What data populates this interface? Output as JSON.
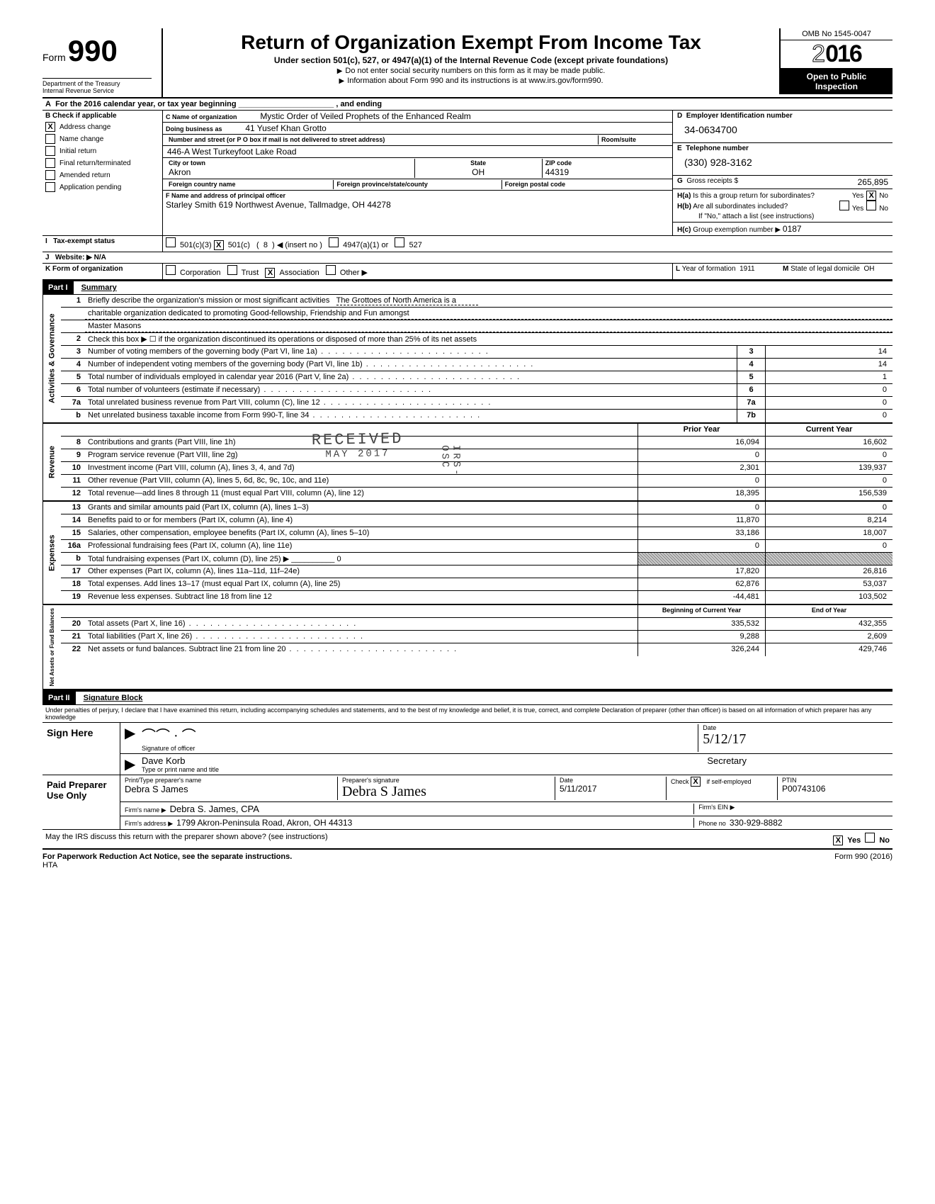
{
  "header": {
    "form_label": "Form",
    "form_number": "990",
    "dept1": "Department of the Treasury",
    "dept2": "Internal Revenue Service",
    "title": "Return of Organization Exempt From Income Tax",
    "subtitle": "Under section 501(c), 527, or 4947(a)(1) of the Internal Revenue Code (except private foundations)",
    "line1": "Do not enter social security numbers on this form as it may be made public.",
    "line2": "Information about Form 990 and its instructions is at www.irs.gov/form990.",
    "omb": "OMB No 1545-0047",
    "year_prefix": "2",
    "year_bold": "016",
    "open1": "Open to Public",
    "open2": "Inspection"
  },
  "rowA": "For the 2016 calendar year, or tax year beginning ______________________ , and ending",
  "colB": {
    "header": "Check if applicable",
    "letter": "B",
    "items": [
      {
        "label": "Address change",
        "checked": true
      },
      {
        "label": "Name change",
        "checked": false
      },
      {
        "label": "Initial return",
        "checked": false
      },
      {
        "label": "Final return/terminated",
        "checked": false
      },
      {
        "label": "Amended return",
        "checked": false
      },
      {
        "label": "Application pending",
        "checked": false
      }
    ]
  },
  "colC": {
    "letter": "C",
    "name_lbl": "Name of organization",
    "name": "Mystic Order of Veiled Prophets of the Enhanced Realm",
    "dba_lbl": "Doing business as",
    "dba": "41 Yusef Khan Grotto",
    "street_lbl": "Number and street (or P O box if mail is not delivered to street address)",
    "room_lbl": "Room/suite",
    "street": "446-A West Turkeyfoot Lake Road",
    "city_lbl": "City or town",
    "state_lbl": "State",
    "zip_lbl": "ZIP code",
    "city": "Akron",
    "state": "OH",
    "zip": "44319",
    "foreign_country_lbl": "Foreign country name",
    "foreign_prov_lbl": "Foreign province/state/county",
    "foreign_postal_lbl": "Foreign postal code",
    "officer_lbl": "Name and address of principal officer",
    "officer_letter": "F",
    "officer": "Starley Smith 619 Northwest Avenue, Tallmadge, OH  44278"
  },
  "colD": {
    "ein_lbl": "Employer Identification number",
    "ein_letter": "D",
    "ein": "34-0634700",
    "tel_lbl": "Telephone number",
    "tel_letter": "E",
    "tel": "(330) 928-3162",
    "gross_lbl": "Gross receipts $",
    "gross_letter": "G",
    "gross": "265,895",
    "ha": "Is this a group return for subordinates?",
    "ha_letter": "H(a)",
    "hb": "Are all subordinates included?",
    "hb_letter": "H(b)",
    "hb_note": "If \"No,\" attach a list (see instructions)",
    "hc": "Group exemption number ▶",
    "hc_letter": "H(c)",
    "hc_val": "0187",
    "yes": "Yes",
    "no": "No"
  },
  "rowI": {
    "letter": "I",
    "label": "Tax-exempt status",
    "opt1": "501(c)(3)",
    "opt2": "501(c)",
    "opt2_paren": "(",
    "opt2_val": "8",
    "opt2_close": ") ◀ (insert no )",
    "opt3": "4947(a)(1) or",
    "opt4": "527"
  },
  "rowJ": {
    "letter": "J",
    "label": "Website: ▶",
    "val": "N/A"
  },
  "rowK": {
    "letter": "K",
    "label": "Form of organization",
    "opts": [
      "Corporation",
      "Trust",
      "Association",
      "Other ▶"
    ],
    "checked_idx": 2,
    "year_lbl": "Year of formation",
    "year_letter": "L",
    "year": "1911",
    "state_lbl": "State of legal domicile",
    "state_letter": "M",
    "state": "OH"
  },
  "part1": {
    "num": "Part I",
    "title": "Summary"
  },
  "governance": {
    "side": "Activities & Governance",
    "r1_num": "1",
    "r1": "Briefly describe the organization's mission or most significant activities",
    "r1_val": "The Grottoes of North America is a",
    "r1_cont": "charitable organization dedicated to promoting Good-fellowship, Friendship and Fun amongst",
    "r1_cont2": "Master Masons",
    "r2_num": "2",
    "r2": "Check this box ▶ ☐ if the organization discontinued its operations or disposed of more than 25% of its net assets",
    "rows": [
      {
        "n": "3",
        "d": "Number of voting members of the governing body (Part VI, line 1a)",
        "b": "3",
        "v": "14"
      },
      {
        "n": "4",
        "d": "Number of independent voting members of the governing body (Part VI, line 1b)",
        "b": "4",
        "v": "14"
      },
      {
        "n": "5",
        "d": "Total number of individuals employed in calendar year 2016 (Part V, line 2a)",
        "b": "5",
        "v": "1"
      },
      {
        "n": "6",
        "d": "Total number of volunteers (estimate if necessary)",
        "b": "6",
        "v": "0"
      },
      {
        "n": "7a",
        "d": "Total unrelated business revenue from Part VIII, column (C), line 12",
        "b": "7a",
        "v": "0"
      },
      {
        "n": "b",
        "d": "Net unrelated business taxable income from Form 990-T, line 34",
        "b": "7b",
        "v": "0"
      }
    ]
  },
  "columns_hdr": {
    "prior": "Prior Year",
    "current": "Current Year"
  },
  "revenue": {
    "side": "Revenue",
    "rows": [
      {
        "n": "8",
        "d": "Contributions and grants (Part VIII, line 1h)",
        "p": "16,094",
        "c": "16,602"
      },
      {
        "n": "9",
        "d": "Program service revenue (Part VIII, line 2g)",
        "p": "0",
        "c": "0"
      },
      {
        "n": "10",
        "d": "Investment income (Part VIII, column (A), lines 3, 4, and 7d)",
        "p": "2,301",
        "c": "139,937"
      },
      {
        "n": "11",
        "d": "Other revenue (Part VIII, column (A), lines 5, 6d, 8c, 9c, 10c, and 11e)",
        "p": "0",
        "c": "0"
      },
      {
        "n": "12",
        "d": "Total revenue—add lines 8 through 11 (must equal Part VIII, column (A), line 12)",
        "p": "18,395",
        "c": "156,539"
      }
    ]
  },
  "expenses": {
    "side": "Expenses",
    "rows": [
      {
        "n": "13",
        "d": "Grants and similar amounts paid (Part IX, column (A), lines 1–3)",
        "p": "0",
        "c": "0"
      },
      {
        "n": "14",
        "d": "Benefits paid to or for members (Part IX, column (A), line 4)",
        "p": "11,870",
        "c": "8,214"
      },
      {
        "n": "15",
        "d": "Salaries, other compensation, employee benefits (Part IX, column (A), lines 5–10)",
        "p": "33,186",
        "c": "18,007"
      },
      {
        "n": "16a",
        "d": "Professional fundraising fees (Part IX, column (A), line 11e)",
        "p": "0",
        "c": "0"
      },
      {
        "n": "b",
        "d": "Total fundraising expenses (Part IX, column (D), line 25)  ▶ __________ 0",
        "p": "",
        "c": "",
        "shaded": true
      },
      {
        "n": "17",
        "d": "Other expenses (Part IX, column (A), lines 11a–11d, 11f–24e)",
        "p": "17,820",
        "c": "26,816"
      },
      {
        "n": "18",
        "d": "Total expenses. Add lines 13–17 (must equal Part IX, column (A), line 25)",
        "p": "62,876",
        "c": "53,037"
      },
      {
        "n": "19",
        "d": "Revenue less expenses. Subtract line 18 from line 12",
        "p": "-44,481",
        "c": "103,502"
      }
    ]
  },
  "columns_hdr2": {
    "prior": "Beginning of Current Year",
    "current": "End of Year"
  },
  "netassets": {
    "side": "Net Assets or Fund Balances",
    "rows": [
      {
        "n": "20",
        "d": "Total assets (Part X, line 16)",
        "p": "335,532",
        "c": "432,355"
      },
      {
        "n": "21",
        "d": "Total liabilities (Part X, line 26)",
        "p": "9,288",
        "c": "2,609"
      },
      {
        "n": "22",
        "d": "Net assets or fund balances. Subtract line 21 from line 20",
        "p": "326,244",
        "c": "429,746"
      }
    ]
  },
  "part2": {
    "num": "Part II",
    "title": "Signature Block"
  },
  "perjury": "Under penalties of perjury, I declare that I have examined this return, including accompanying schedules and statements, and to the best of my knowledge and belief, it is true, correct, and complete  Declaration of preparer (other than officer) is based on all information of which preparer has any knowledge",
  "sign": {
    "here": "Sign Here",
    "sig_lbl": "Signature of officer",
    "date_lbl": "Date",
    "date": "5/12/17",
    "name": "Dave Korb",
    "title": "Secretary",
    "name_lbl": "Type or print name and title"
  },
  "preparer": {
    "left": "Paid Preparer Use Only",
    "name_lbl": "Print/Type preparer's name",
    "name": "Debra S James",
    "sig_lbl": "Preparer's signature",
    "date_lbl": "Date",
    "date": "5/11/2017",
    "check_lbl": "Check",
    "check_suffix": "if self-employed",
    "ptin_lbl": "PTIN",
    "ptin": "P00743106",
    "firm_lbl": "Firm's name ▶",
    "firm": "Debra S. James, CPA",
    "ein_lbl": "Firm's EIN ▶",
    "addr_lbl": "Firm's address ▶",
    "addr": "1799 Akron-Peninsula Road, Akron, OH 44313",
    "phone_lbl": "Phone no",
    "phone": "330-929-8882"
  },
  "discuss": {
    "text": "May the IRS discuss this return with the preparer shown above? (see instructions)",
    "yes": "Yes",
    "no": "No"
  },
  "footer": {
    "left": "For Paperwork Reduction Act Notice, see the separate instructions.",
    "hta": "HTA",
    "right": "Form 990 (2016)"
  },
  "stamp": {
    "received": "RECEIVED",
    "date": "MAY  2017",
    "irs": "IRS-OSC"
  }
}
